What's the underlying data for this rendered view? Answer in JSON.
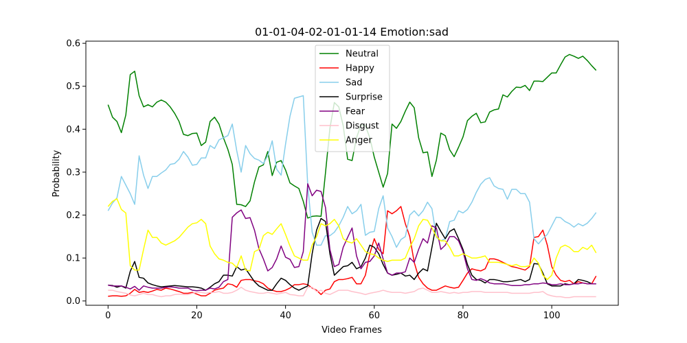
{
  "chart_data": {
    "type": "line",
    "title": "01-01-04-02-01-01-14 Emotion:sad",
    "xlabel": "Video Frames",
    "ylabel": "Probability",
    "xlim": [
      -5,
      115
    ],
    "ylim": [
      -0.01,
      0.605
    ],
    "x_ticks": [
      0,
      20,
      40,
      60,
      80,
      100
    ],
    "y_ticks": [
      0.0,
      0.1,
      0.2,
      0.3,
      0.4,
      0.5,
      0.6
    ],
    "x_tick_labels": [
      "0",
      "20",
      "40",
      "60",
      "80",
      "100"
    ],
    "y_tick_labels": [
      "0.0",
      "0.1",
      "0.2",
      "0.3",
      "0.4",
      "0.5",
      "0.6"
    ],
    "legend_position": "top-center",
    "grid": false,
    "x": [
      0,
      1,
      2,
      3,
      4,
      5,
      6,
      7,
      8,
      9,
      10,
      11,
      12,
      13,
      14,
      15,
      16,
      17,
      18,
      19,
      20,
      21,
      22,
      23,
      24,
      25,
      26,
      27,
      28,
      29,
      30,
      31,
      32,
      33,
      34,
      35,
      36,
      37,
      38,
      39,
      40,
      41,
      42,
      43,
      44,
      45,
      46,
      47,
      48,
      49,
      50,
      51,
      52,
      53,
      54,
      55,
      56,
      57,
      58,
      59,
      60,
      61,
      62,
      63,
      64,
      65,
      66,
      67,
      68,
      69,
      70,
      71,
      72,
      73,
      74,
      75,
      76,
      77,
      78,
      79,
      80,
      81,
      82,
      83,
      84,
      85,
      86,
      87,
      88,
      89,
      90,
      91,
      92,
      93,
      94,
      95,
      96,
      97,
      98,
      99,
      100,
      101,
      102,
      103,
      104,
      105,
      106,
      107,
      108,
      109,
      110
    ],
    "series": [
      {
        "name": "Neutral",
        "color": "#008000",
        "values": [
          0.457,
          0.428,
          0.418,
          0.392,
          0.433,
          0.527,
          0.535,
          0.478,
          0.452,
          0.457,
          0.452,
          0.463,
          0.468,
          0.463,
          0.452,
          0.437,
          0.418,
          0.388,
          0.385,
          0.39,
          0.391,
          0.362,
          0.37,
          0.418,
          0.428,
          0.412,
          0.38,
          0.353,
          0.318,
          0.225,
          0.224,
          0.22,
          0.233,
          0.277,
          0.312,
          0.317,
          0.348,
          0.292,
          0.323,
          0.327,
          0.305,
          0.275,
          0.268,
          0.262,
          0.232,
          0.193,
          0.197,
          0.198,
          0.197,
          0.298,
          0.402,
          0.462,
          0.452,
          0.408,
          0.33,
          0.327,
          0.38,
          0.41,
          0.408,
          0.38,
          0.335,
          0.3,
          0.265,
          0.297,
          0.412,
          0.402,
          0.418,
          0.442,
          0.463,
          0.45,
          0.38,
          0.345,
          0.347,
          0.29,
          0.328,
          0.391,
          0.385,
          0.352,
          0.336,
          0.358,
          0.382,
          0.42,
          0.43,
          0.437,
          0.415,
          0.417,
          0.44,
          0.445,
          0.447,
          0.48,
          0.475,
          0.488,
          0.498,
          0.497,
          0.502,
          0.49,
          0.512,
          0.512,
          0.511,
          0.521,
          0.531,
          0.531,
          0.55,
          0.568,
          0.574,
          0.57,
          0.565,
          0.57,
          0.56,
          0.548,
          0.537
        ]
      },
      {
        "name": "Happy",
        "color": "#ff0000",
        "values": [
          0.011,
          0.012,
          0.012,
          0.011,
          0.012,
          0.018,
          0.027,
          0.02,
          0.022,
          0.02,
          0.023,
          0.027,
          0.025,
          0.03,
          0.028,
          0.025,
          0.022,
          0.018,
          0.018,
          0.02,
          0.016,
          0.012,
          0.012,
          0.018,
          0.025,
          0.028,
          0.03,
          0.04,
          0.038,
          0.032,
          0.048,
          0.05,
          0.05,
          0.047,
          0.045,
          0.04,
          0.03,
          0.025,
          0.022,
          0.022,
          0.025,
          0.03,
          0.038,
          0.038,
          0.04,
          0.038,
          0.03,
          0.025,
          0.015,
          0.025,
          0.028,
          0.045,
          0.05,
          0.05,
          0.052,
          0.055,
          0.04,
          0.04,
          0.06,
          0.11,
          0.145,
          0.12,
          0.11,
          0.21,
          0.203,
          0.21,
          0.22,
          0.18,
          0.15,
          0.09,
          0.055,
          0.04,
          0.03,
          0.025,
          0.025,
          0.03,
          0.035,
          0.032,
          0.03,
          0.032,
          0.048,
          0.065,
          0.075,
          0.072,
          0.07,
          0.075,
          0.098,
          0.098,
          0.095,
          0.09,
          0.085,
          0.08,
          0.078,
          0.075,
          0.072,
          0.08,
          0.148,
          0.15,
          0.165,
          0.13,
          0.08,
          0.06,
          0.048,
          0.045,
          0.048,
          0.04,
          0.045,
          0.042,
          0.04,
          0.04,
          0.058
        ]
      },
      {
        "name": "Sad",
        "color": "#87ceeb",
        "values": [
          0.21,
          0.228,
          0.24,
          0.29,
          0.27,
          0.25,
          0.225,
          0.338,
          0.293,
          0.262,
          0.29,
          0.29,
          0.298,
          0.305,
          0.318,
          0.32,
          0.33,
          0.348,
          0.335,
          0.316,
          0.318,
          0.333,
          0.333,
          0.362,
          0.355,
          0.375,
          0.38,
          0.385,
          0.412,
          0.35,
          0.3,
          0.362,
          0.343,
          0.332,
          0.328,
          0.32,
          0.338,
          0.373,
          0.307,
          0.293,
          0.365,
          0.43,
          0.472,
          0.475,
          0.478,
          0.27,
          0.16,
          0.13,
          0.13,
          0.152,
          0.152,
          0.16,
          0.175,
          0.195,
          0.22,
          0.203,
          0.21,
          0.225,
          0.153,
          0.16,
          0.162,
          0.215,
          0.245,
          0.17,
          0.15,
          0.125,
          0.143,
          0.15,
          0.2,
          0.21,
          0.198,
          0.21,
          0.23,
          0.215,
          0.148,
          0.14,
          0.145,
          0.185,
          0.188,
          0.21,
          0.205,
          0.213,
          0.23,
          0.253,
          0.272,
          0.283,
          0.287,
          0.268,
          0.262,
          0.26,
          0.237,
          0.26,
          0.26,
          0.25,
          0.25,
          0.23,
          0.145,
          0.133,
          0.145,
          0.155,
          0.175,
          0.195,
          0.194,
          0.185,
          0.18,
          0.172,
          0.18,
          0.175,
          0.181,
          0.192,
          0.206
        ]
      },
      {
        "name": "Surprise",
        "color": "#000000",
        "values": [
          0.037,
          0.036,
          0.032,
          0.035,
          0.03,
          0.069,
          0.092,
          0.055,
          0.053,
          0.042,
          0.038,
          0.035,
          0.033,
          0.034,
          0.035,
          0.036,
          0.035,
          0.034,
          0.033,
          0.033,
          0.032,
          0.03,
          0.025,
          0.032,
          0.04,
          0.045,
          0.06,
          0.06,
          0.058,
          0.08,
          0.072,
          0.075,
          0.06,
          0.045,
          0.035,
          0.03,
          0.025,
          0.025,
          0.04,
          0.053,
          0.048,
          0.038,
          0.03,
          0.025,
          0.03,
          0.035,
          0.11,
          0.165,
          0.192,
          0.185,
          0.11,
          0.06,
          0.07,
          0.08,
          0.082,
          0.09,
          0.075,
          0.08,
          0.1,
          0.13,
          0.125,
          0.11,
          0.085,
          0.065,
          0.06,
          0.062,
          0.065,
          0.058,
          0.06,
          0.05,
          0.065,
          0.075,
          0.07,
          0.125,
          0.181,
          0.162,
          0.145,
          0.162,
          0.168,
          0.145,
          0.12,
          0.085,
          0.06,
          0.05,
          0.048,
          0.042,
          0.05,
          0.05,
          0.048,
          0.045,
          0.045,
          0.046,
          0.048,
          0.05,
          0.045,
          0.05,
          0.087,
          0.086,
          0.065,
          0.04,
          0.035,
          0.035,
          0.035,
          0.04,
          0.038,
          0.04,
          0.05,
          0.048,
          0.045,
          0.04,
          0.04
        ]
      },
      {
        "name": "Fear",
        "color": "#800080",
        "values": [
          0.037,
          0.035,
          0.035,
          0.035,
          0.032,
          0.028,
          0.034,
          0.025,
          0.035,
          0.032,
          0.03,
          0.03,
          0.03,
          0.032,
          0.033,
          0.032,
          0.03,
          0.03,
          0.03,
          0.025,
          0.024,
          0.025,
          0.025,
          0.03,
          0.028,
          0.032,
          0.045,
          0.05,
          0.195,
          0.205,
          0.212,
          0.192,
          0.194,
          0.165,
          0.122,
          0.098,
          0.07,
          0.078,
          0.098,
          0.128,
          0.102,
          0.097,
          0.078,
          0.08,
          0.115,
          0.273,
          0.245,
          0.258,
          0.255,
          0.218,
          0.12,
          0.08,
          0.085,
          0.125,
          0.148,
          0.17,
          0.105,
          0.075,
          0.09,
          0.092,
          0.105,
          0.135,
          0.098,
          0.065,
          0.06,
          0.065,
          0.065,
          0.068,
          0.1,
          0.09,
          0.12,
          0.145,
          0.135,
          0.175,
          0.17,
          0.12,
          0.13,
          0.15,
          0.15,
          0.14,
          0.115,
          0.075,
          0.05,
          0.048,
          0.052,
          0.048,
          0.042,
          0.04,
          0.04,
          0.04,
          0.038,
          0.036,
          0.036,
          0.036,
          0.038,
          0.038,
          0.04,
          0.04,
          0.042,
          0.041,
          0.038,
          0.038,
          0.04,
          0.038,
          0.038,
          0.04,
          0.04,
          0.042,
          0.04,
          0.04,
          0.04
        ]
      },
      {
        "name": "Disgust",
        "color": "#ffc0cb",
        "values": [
          0.025,
          0.025,
          0.022,
          0.02,
          0.018,
          0.014,
          0.012,
          0.015,
          0.018,
          0.015,
          0.015,
          0.012,
          0.01,
          0.012,
          0.012,
          0.015,
          0.016,
          0.015,
          0.015,
          0.018,
          0.02,
          0.02,
          0.018,
          0.02,
          0.02,
          0.022,
          0.018,
          0.018,
          0.02,
          0.025,
          0.032,
          0.025,
          0.022,
          0.02,
          0.018,
          0.018,
          0.02,
          0.018,
          0.016,
          0.018,
          0.02,
          0.015,
          0.014,
          0.012,
          0.012,
          0.032,
          0.032,
          0.022,
          0.025,
          0.018,
          0.015,
          0.02,
          0.025,
          0.025,
          0.025,
          0.022,
          0.02,
          0.018,
          0.015,
          0.018,
          0.02,
          0.022,
          0.025,
          0.022,
          0.02,
          0.02,
          0.02,
          0.018,
          0.02,
          0.022,
          0.028,
          0.03,
          0.025,
          0.02,
          0.02,
          0.022,
          0.02,
          0.018,
          0.02,
          0.018,
          0.02,
          0.02,
          0.022,
          0.022,
          0.022,
          0.02,
          0.02,
          0.02,
          0.02,
          0.02,
          0.02,
          0.018,
          0.018,
          0.018,
          0.018,
          0.018,
          0.02,
          0.02,
          0.022,
          0.015,
          0.012,
          0.01,
          0.01,
          0.008,
          0.008,
          0.01,
          0.01,
          0.01,
          0.01,
          0.01,
          0.01
        ]
      },
      {
        "name": "Anger",
        "color": "#ffff00",
        "values": [
          0.22,
          0.232,
          0.238,
          0.213,
          0.205,
          0.082,
          0.072,
          0.072,
          0.12,
          0.165,
          0.148,
          0.148,
          0.135,
          0.13,
          0.135,
          0.14,
          0.148,
          0.16,
          0.172,
          0.18,
          0.182,
          0.19,
          0.18,
          0.128,
          0.11,
          0.098,
          0.095,
          0.09,
          0.088,
          0.078,
          0.105,
          0.072,
          0.07,
          0.115,
          0.12,
          0.152,
          0.16,
          0.155,
          0.168,
          0.18,
          0.155,
          0.128,
          0.105,
          0.1,
          0.095,
          0.095,
          0.13,
          0.15,
          0.18,
          0.175,
          0.18,
          0.19,
          0.175,
          0.145,
          0.138,
          0.135,
          0.145,
          0.13,
          0.115,
          0.11,
          0.108,
          0.1,
          0.095,
          0.092,
          0.095,
          0.095,
          0.095,
          0.1,
          0.125,
          0.145,
          0.175,
          0.19,
          0.188,
          0.17,
          0.15,
          0.14,
          0.14,
          0.125,
          0.105,
          0.105,
          0.11,
          0.105,
          0.1,
          0.1,
          0.102,
          0.105,
          0.09,
          0.09,
          0.09,
          0.088,
          0.085,
          0.082,
          0.085,
          0.08,
          0.08,
          0.082,
          0.1,
          0.088,
          0.06,
          0.05,
          0.06,
          0.1,
          0.125,
          0.13,
          0.125,
          0.115,
          0.115,
          0.125,
          0.12,
          0.13,
          0.112
        ]
      }
    ]
  }
}
